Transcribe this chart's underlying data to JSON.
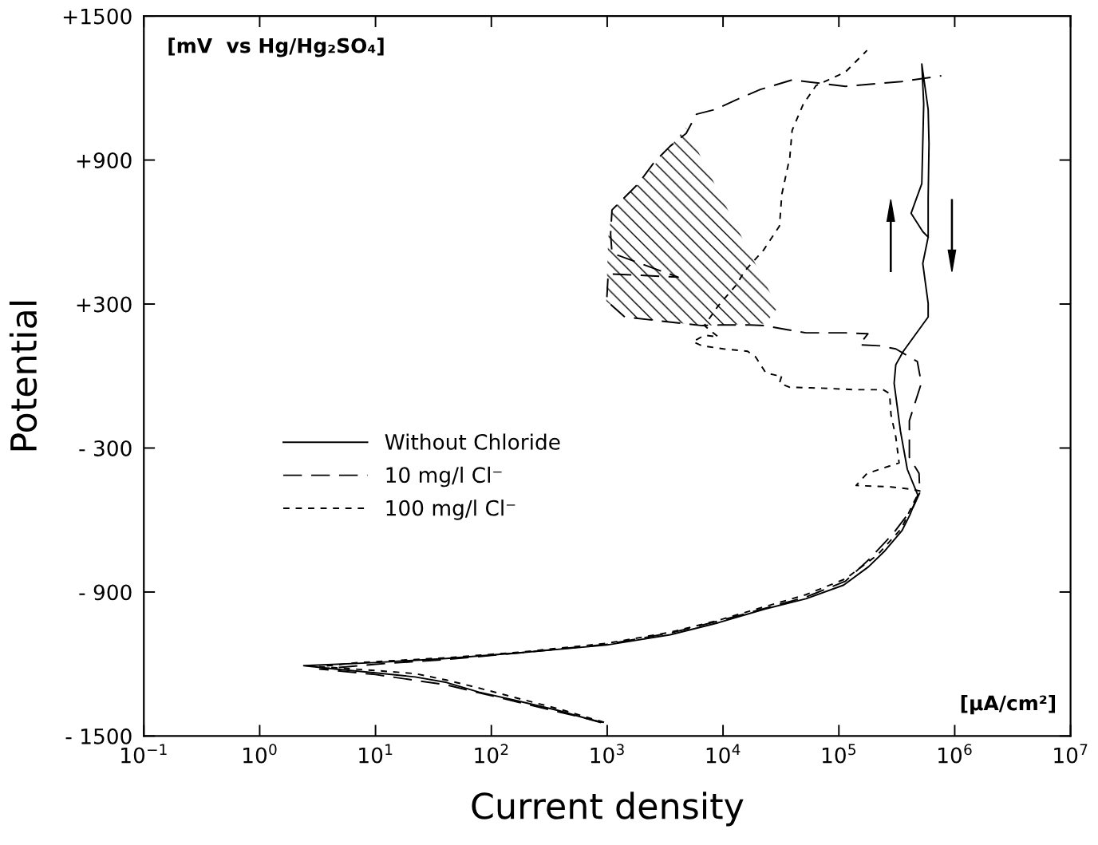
{
  "chart_data": {
    "type": "line",
    "xlabel": "Current density",
    "ylabel": "Potential",
    "log": "x",
    "xlim": [
      0.1,
      10000000
    ],
    "ylim": [
      -1500,
      1500
    ],
    "xticks": [
      {
        "value": 0.1,
        "label": "10$^{−1}$"
      },
      {
        "value": 1,
        "label": "10$^{0}$"
      },
      {
        "value": 10,
        "label": "10$^{1}$"
      },
      {
        "value": 100,
        "label": "10$^{2}$"
      },
      {
        "value": 1000,
        "label": "10$^{3}$"
      },
      {
        "value": 10000,
        "label": "10$^{4}$"
      },
      {
        "value": 100000,
        "label": "10$^{5}$"
      },
      {
        "value": 1000000,
        "label": "10$^{6}$"
      },
      {
        "value": 10000000,
        "label": "10$^{7}$"
      }
    ],
    "yticks": [
      {
        "value": 1500,
        "label": "+1500"
      },
      {
        "value": 900,
        "label": "+900"
      },
      {
        "value": 300,
        "label": "+300"
      },
      {
        "value": -300,
        "label": "- 300"
      },
      {
        "value": -900,
        "label": "- 900"
      },
      {
        "value": -1500,
        "label": "- 1500"
      }
    ],
    "grid": false,
    "legend": "center",
    "marker": "none",
    "annotations": [
      "[mV  vs Hg/Hg₂SO₄]",
      "[µA/cm²]"
    ],
    "series": [
      {
        "name": "Without Chloride",
        "color": "#000000",
        "line_style": "solid",
        "x": [
          870,
          380,
          170,
          78,
          41,
          22,
          10,
          4.5,
          2.4,
          10,
          41,
          170,
          990,
          3500,
          9100,
          23000,
          52000,
          110000,
          180000,
          250000,
          350000,
          410000,
          480000,
          390000,
          340000,
          300000,
          310000,
          360000,
          590000,
          590000,
          530000,
          590000,
          590000,
          600000,
          590000,
          520000,
          540000,
          520000,
          420000,
          530000,
          590000
        ],
        "values": [
          -1443,
          -1394,
          -1354,
          -1317,
          -1277,
          -1254,
          -1237,
          -1221,
          -1207,
          -1194,
          -1177,
          -1154,
          -1121,
          -1078,
          -1028,
          -971,
          -928,
          -871,
          -795,
          -728,
          -645,
          -579,
          -496,
          -389,
          -229,
          -30,
          47,
          103,
          246,
          303,
          469,
          579,
          745,
          968,
          1111,
          1300,
          1134,
          802,
          678,
          602,
          579
        ]
      },
      {
        "name": "10 mg/l Cl⁻",
        "color": "#000000",
        "line_style": "dashed",
        "x": [
          910,
          173,
          41,
          10,
          3.3,
          10,
          41,
          173,
          990,
          3500,
          9100,
          23000,
          52000,
          114000,
          184000,
          296000,
          440000,
          500000,
          492000,
          406000,
          406000,
          515000,
          476000,
          310000,
          226000,
          150000,
          178000,
          114000,
          52000,
          36000,
          23000,
          17100,
          9500,
          6600,
          1420,
          990,
          1020,
          4100,
          1100,
          1070,
          1100,
          1860,
          2550,
          3500,
          4800,
          5900,
          8600,
          13900,
          21000,
          39500,
          114000,
          347000,
          766000
        ],
        "values": [
          -1443,
          -1360,
          -1287,
          -1244,
          -1221,
          -1201,
          -1181,
          -1154,
          -1118,
          -1071,
          -1021,
          -968,
          -921,
          -855,
          -762,
          -655,
          -545,
          -486,
          -406,
          -339,
          -186,
          -30,
          60,
          113,
          126,
          130,
          176,
          180,
          180,
          193,
          210,
          213,
          213,
          210,
          246,
          313,
          426,
          412,
          512,
          592,
          692,
          802,
          891,
          958,
          1011,
          1091,
          1111,
          1157,
          1194,
          1234,
          1207,
          1227,
          1251
        ]
      },
      {
        "name": "100 mg/l Cl⁻",
        "color": "#000000",
        "line_style": "dotted",
        "x": [
          940,
          381,
          173,
          78,
          41,
          22,
          10,
          3.3,
          7.2,
          41,
          173,
          990,
          3500,
          9100,
          23000,
          52000,
          114000,
          216000,
          347000,
          440000,
          500000,
          426000,
          282000,
          141000,
          175000,
          331000,
          310000,
          282000,
          274000,
          241000,
          141000,
          68000,
          37700,
          30700,
          32200,
          28800,
          23400,
          19100,
          16300,
          10100,
          6600,
          5500,
          6900,
          9100,
          6900,
          9100,
          13000,
          15300,
          22400,
          30700,
          32200,
          37700,
          39500,
          49400,
          63700,
          114000,
          175000
        ],
        "values": [
          -1443,
          -1387,
          -1344,
          -1300,
          -1267,
          -1240,
          -1227,
          -1211,
          -1194,
          -1174,
          -1151,
          -1114,
          -1068,
          -1018,
          -961,
          -911,
          -845,
          -745,
          -635,
          -529,
          -479,
          -472,
          -462,
          -456,
          -406,
          -362,
          -253,
          -163,
          -73,
          -57,
          -57,
          -50,
          -47,
          -30,
          3,
          3,
          13,
          80,
          103,
          113,
          126,
          143,
          170,
          163,
          210,
          293,
          379,
          436,
          525,
          625,
          758,
          911,
          1024,
          1134,
          1211,
          1267,
          1357
        ]
      }
    ]
  }
}
